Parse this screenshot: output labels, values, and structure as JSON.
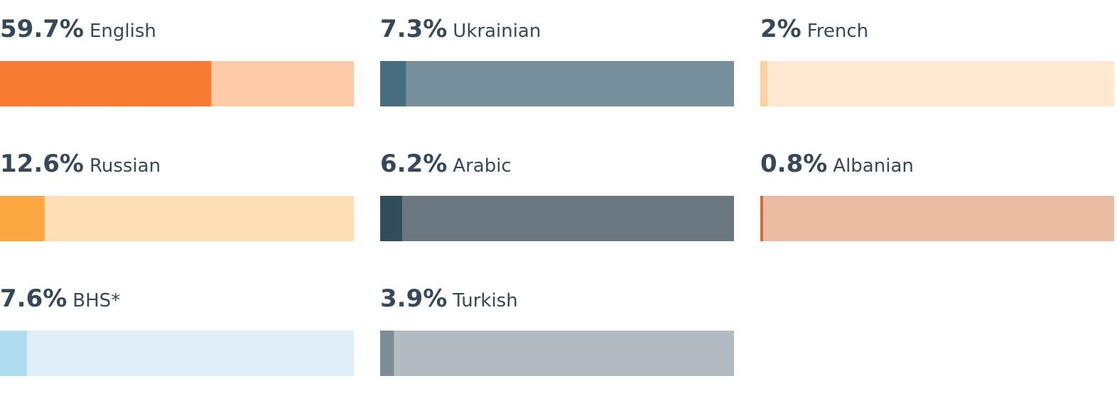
{
  "chart_data": {
    "type": "progress",
    "categories": [
      "English",
      "Russian",
      "BHS*",
      "Ukrainian",
      "Arabic",
      "Turkish",
      "French",
      "Albanian"
    ],
    "values": [
      59.7,
      12.6,
      7.6,
      7.3,
      6.2,
      3.9,
      2,
      0.8
    ],
    "value_labels": [
      "59.7%",
      "12.6%",
      "7.6%",
      "7.3%",
      "6.2%",
      "3.9%",
      "2%",
      "0.8%"
    ],
    "colors": [
      "#f77b30",
      "#fba843",
      "#b0dcf0",
      "#456e80",
      "#314c5a",
      "#7b8d96",
      "#fed29e",
      "#e06530"
    ],
    "track_colors": [
      "#fecaa8",
      "#ffdfb6",
      "#dfeef6",
      "#778e9c",
      "#6a7781",
      "#b1bbc1",
      "#fee8d0",
      "#ecbca2"
    ],
    "xlim": [
      0,
      100
    ]
  }
}
